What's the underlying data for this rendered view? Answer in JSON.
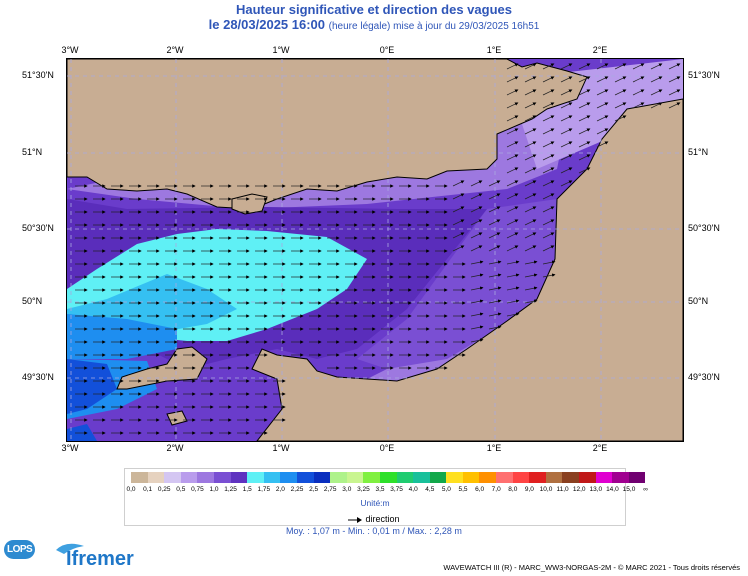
{
  "header": {
    "title": "Hauteur significative et direction des vagues",
    "date_line": "le 28/03/2025 16:00",
    "date_sub": "(heure légale) mise à jour du 29/03/2025 16h51"
  },
  "map": {
    "longitudes_top": [
      "3°W",
      "2°W",
      "1°W",
      "0°E",
      "1°E",
      "2°E"
    ],
    "longitudes_bottom": [
      "3°W",
      "2°W",
      "1°W",
      "0°E",
      "1°E",
      "2°E"
    ],
    "latitudes_left": [
      "51°30'N",
      "51°N",
      "50°30'N",
      "50°N",
      "49°30'N"
    ],
    "latitudes_right": [
      "51°30'N",
      "51°N",
      "50°30'N",
      "50°N",
      "49°30'N"
    ]
  },
  "legend": {
    "labels": [
      "0,0",
      "0,1",
      "0,25",
      "0,5",
      "0,75",
      "1,0",
      "1,25",
      "1,5",
      "1,75",
      "2,0",
      "2,25",
      "2,5",
      "2,75",
      "3,0",
      "3,25",
      "3,5",
      "3,75",
      "4,0",
      "4,5",
      "5,0",
      "5,5",
      "6,0",
      "7,0",
      "8,0",
      "9,0",
      "10,0",
      "11,0",
      "12,0",
      "13,0",
      "14,0",
      "15,0",
      "∞"
    ],
    "colors": [
      "#ccb69a",
      "#e6d2bf",
      "#d4c6f2",
      "#b99cec",
      "#9d78e0",
      "#7a4fd3",
      "#5f33c0",
      "#5ff0f5",
      "#35c0f2",
      "#1e8ef0",
      "#1250da",
      "#0a2fbf",
      "#aef28a",
      "#c9f590",
      "#80f040",
      "#2ee02a",
      "#1fcc70",
      "#18c09a",
      "#12a84a",
      "#ffe020",
      "#ffc000",
      "#ff9000",
      "#ff7070",
      "#ff4444",
      "#e02020",
      "#b07040",
      "#8a4020",
      "#c01818",
      "#e000d0",
      "#a00090",
      "#700070"
    ],
    "unit": "Unité:m",
    "direction_label": "direction"
  },
  "stats": "Moy. : 1,07 m   -   Min. : 0,01 m / Max. : 2,28 m",
  "credit": "WAVEWATCH III (R) - MARC_WW3-NORGAS-2M - © MARC 2021 - Tous droits réservés",
  "logos": {
    "lops": "LOPS",
    "ifremer": "Ifremer"
  }
}
